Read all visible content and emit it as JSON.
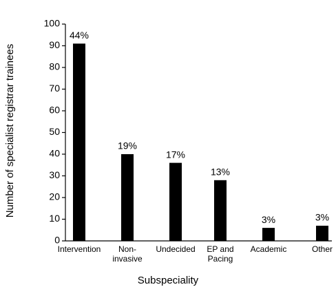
{
  "chart_data": {
    "type": "bar",
    "x_label": "Subspeciality",
    "y_label": "Number of specialist registrar trainees",
    "categories": [
      "Intervention",
      "Non-\ninvasive",
      "Undecided",
      "EP and\nPacing",
      "Academic",
      "Other"
    ],
    "values": [
      91,
      40,
      36,
      28,
      6,
      7
    ],
    "shares": [
      "44%",
      "19%",
      "17%",
      "13%",
      "3%",
      "3%"
    ],
    "color": "#000000",
    "ylim": [
      0,
      100
    ],
    "yticks": [
      0,
      10,
      20,
      30,
      40,
      50,
      60,
      70,
      80,
      90,
      100
    ],
    "grid": false
  }
}
